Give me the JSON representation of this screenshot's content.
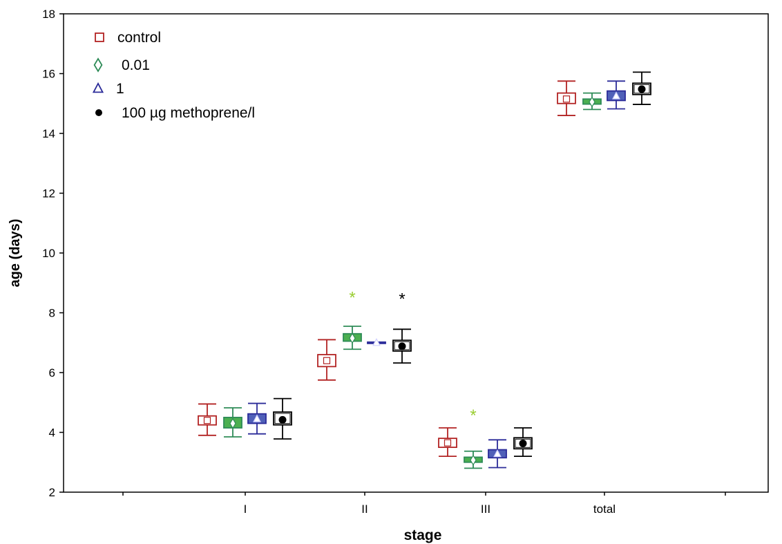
{
  "chart_data": {
    "type": "boxplot",
    "title": "",
    "xlabel": "stage",
    "ylabel": "age (days)",
    "ylim": [
      2,
      18
    ],
    "yticks": [
      2,
      4,
      6,
      8,
      10,
      12,
      14,
      16,
      18
    ],
    "categories": [
      "I",
      "II",
      "III",
      "total"
    ],
    "grid": false,
    "legend_position": "top-left",
    "series": [
      {
        "name": "control",
        "marker": "square",
        "color": "#b22222",
        "boxes": [
          {
            "category": "I",
            "mean": 4.4,
            "box_low": 4.25,
            "box_high": 4.55,
            "whisker_low": 3.9,
            "whisker_high": 4.95
          },
          {
            "category": "II",
            "mean": 6.4,
            "box_low": 6.2,
            "box_high": 6.6,
            "whisker_low": 5.75,
            "whisker_high": 7.1
          },
          {
            "category": "III",
            "mean": 3.65,
            "box_low": 3.5,
            "box_high": 3.8,
            "whisker_low": 3.2,
            "whisker_high": 4.15
          },
          {
            "category": "total",
            "mean": 15.15,
            "box_low": 15.0,
            "box_high": 15.35,
            "whisker_low": 14.6,
            "whisker_high": 15.75
          }
        ]
      },
      {
        "name": "0.01",
        "marker": "diamond",
        "color": "#2e8b57",
        "boxes": [
          {
            "category": "I",
            "mean": 4.3,
            "box_low": 4.15,
            "box_high": 4.5,
            "whisker_low": 3.85,
            "whisker_high": 4.82
          },
          {
            "category": "II",
            "mean": 7.15,
            "box_low": 7.05,
            "box_high": 7.3,
            "whisker_low": 6.78,
            "whisker_high": 7.55
          },
          {
            "category": "III",
            "mean": 3.07,
            "box_low": 3.0,
            "box_high": 3.17,
            "whisker_low": 2.8,
            "whisker_high": 3.37
          },
          {
            "category": "total",
            "mean": 15.05,
            "box_low": 14.98,
            "box_high": 15.15,
            "whisker_low": 14.8,
            "whisker_high": 15.35
          }
        ]
      },
      {
        "name": "1",
        "marker": "triangle",
        "color": "#2b2b99",
        "boxes": [
          {
            "category": "I",
            "mean": 4.45,
            "box_low": 4.3,
            "box_high": 4.62,
            "whisker_low": 3.95,
            "whisker_high": 4.97
          },
          {
            "category": "II",
            "mean": 7.0,
            "box_low": 6.98,
            "box_high": 7.02,
            "whisker_low": 6.98,
            "whisker_high": 7.02
          },
          {
            "category": "III",
            "mean": 3.28,
            "box_low": 3.15,
            "box_high": 3.42,
            "whisker_low": 2.82,
            "whisker_high": 3.75
          },
          {
            "category": "total",
            "mean": 15.25,
            "box_low": 15.1,
            "box_high": 15.42,
            "whisker_low": 14.82,
            "whisker_high": 15.75
          }
        ]
      },
      {
        "name": "100 µg methoprene/l",
        "marker": "circle",
        "color": "#000000",
        "boxes": [
          {
            "category": "I",
            "mean": 4.42,
            "box_low": 4.25,
            "box_high": 4.68,
            "whisker_low": 3.78,
            "whisker_high": 5.13
          },
          {
            "category": "II",
            "mean": 6.88,
            "box_low": 6.72,
            "box_high": 7.08,
            "whisker_low": 6.32,
            "whisker_high": 7.45
          },
          {
            "category": "III",
            "mean": 3.63,
            "box_low": 3.45,
            "box_high": 3.82,
            "whisker_low": 3.2,
            "whisker_high": 4.15
          },
          {
            "category": "total",
            "mean": 15.48,
            "box_low": 15.3,
            "box_high": 15.68,
            "whisker_low": 14.97,
            "whisker_high": 16.05
          }
        ]
      }
    ],
    "significance_marks": [
      {
        "category": "II",
        "series": "0.01",
        "y": 8.65,
        "symbol": "*",
        "color": "#9acd32"
      },
      {
        "category": "II",
        "series": "100 µg methoprene/l",
        "y": 8.6,
        "symbol": "*",
        "color": "#000000"
      },
      {
        "category": "III",
        "series": "0.01",
        "y": 4.7,
        "symbol": "*",
        "color": "#9acd32"
      }
    ]
  }
}
